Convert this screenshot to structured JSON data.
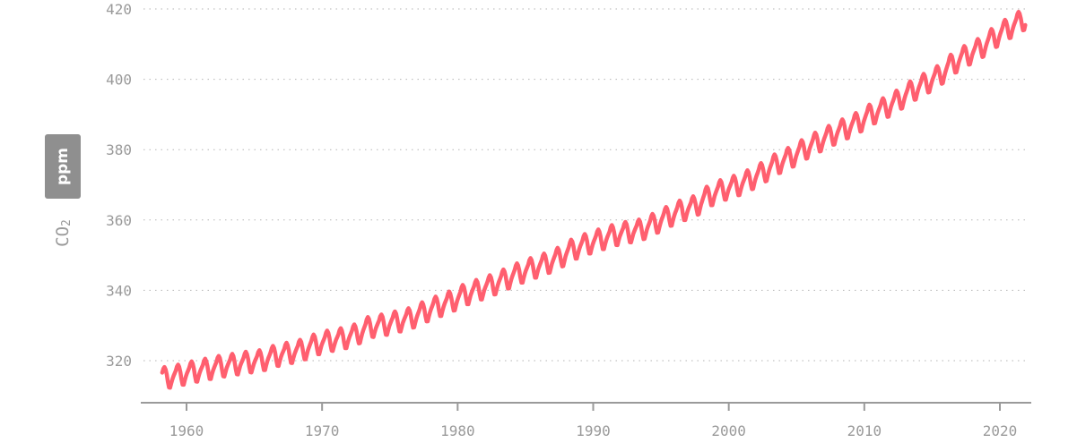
{
  "chart_data": {
    "type": "line",
    "title": "",
    "xlabel": "",
    "ylabel": {
      "main": "CO",
      "subscript": "2"
    },
    "unit_badge": "ppm",
    "xlim": [
      1956.6,
      2022.3
    ],
    "ylim": [
      308,
      420
    ],
    "x_ticks": [
      1960,
      1970,
      1980,
      1990,
      2000,
      2010,
      2020
    ],
    "y_ticks": [
      320,
      340,
      360,
      380,
      400,
      420
    ],
    "grid": {
      "horizontal": true,
      "style": "dotted"
    },
    "line_color": "#ff5f6f",
    "axis_color": "#9a9a9a",
    "x_range": [
      1958.2,
      2021.9
    ],
    "series": [
      {
        "years": [
          1958,
          1959,
          1960,
          1961,
          1962,
          1963,
          1964,
          1965,
          1966,
          1967,
          1968,
          1969,
          1970,
          1971,
          1972,
          1973,
          1974,
          1975,
          1976,
          1977,
          1978,
          1979,
          1980,
          1981,
          1982,
          1983,
          1984,
          1985,
          1986,
          1987,
          1988,
          1989,
          1990,
          1991,
          1992,
          1993,
          1994,
          1995,
          1996,
          1997,
          1998,
          1999,
          2000,
          2001,
          2002,
          2003,
          2004,
          2005,
          2006,
          2007,
          2008,
          2009,
          2010,
          2011,
          2012,
          2013,
          2014,
          2015,
          2016,
          2017,
          2018,
          2019,
          2020,
          2021
        ],
        "annual_mean": [
          315.2,
          315.98,
          316.91,
          317.64,
          318.45,
          318.99,
          319.62,
          320.04,
          321.37,
          322.18,
          323.05,
          324.62,
          325.68,
          326.32,
          327.46,
          329.68,
          330.19,
          331.12,
          332.03,
          333.84,
          335.41,
          336.84,
          338.76,
          340.12,
          341.48,
          343.15,
          344.87,
          346.35,
          347.61,
          349.31,
          351.69,
          353.2,
          354.45,
          355.7,
          356.54,
          357.21,
          358.96,
          360.97,
          362.74,
          363.88,
          366.84,
          368.54,
          369.71,
          371.32,
          373.45,
          375.98,
          377.7,
          379.98,
          382.09,
          384.02,
          385.83,
          387.64,
          390.1,
          391.85,
          394.06,
          396.74,
          398.81,
          401.01,
          404.41,
          406.76,
          408.72,
          411.66,
          414.24,
          416.45
        ],
        "seasonal_offsets": [
          0.0,
          0.7,
          1.4,
          2.5,
          3.0,
          2.3,
          0.8,
          -1.3,
          -3.0,
          -3.1,
          -1.9,
          -0.8
        ]
      }
    ]
  }
}
